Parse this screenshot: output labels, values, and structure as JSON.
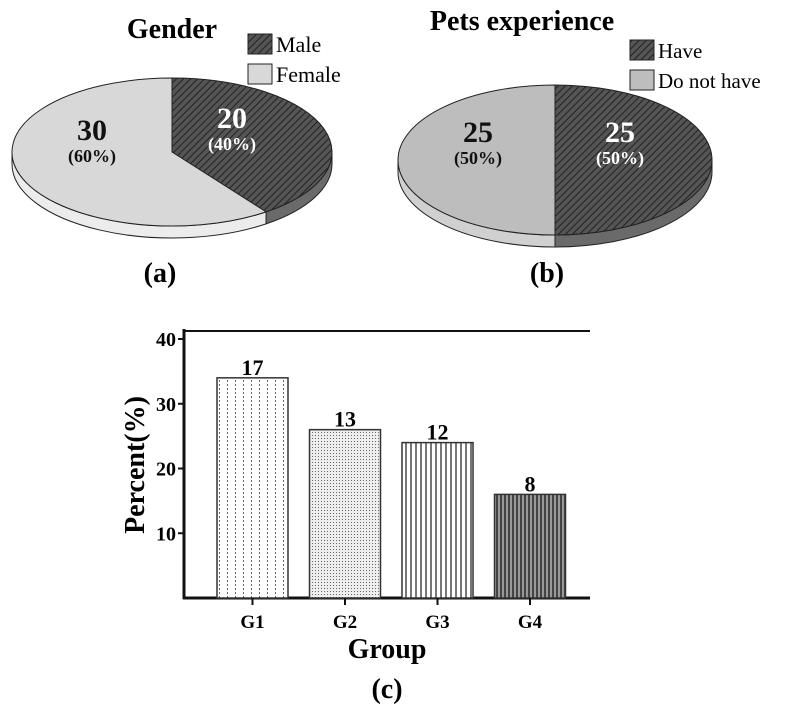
{
  "colors": {
    "dark": "#4a4a4a",
    "light": "#d8d8d8",
    "mid": "#bdbdbd",
    "stroke": "#222222"
  },
  "chart_data": [
    {
      "type": "pie",
      "panel": "(a)",
      "title": "Gender",
      "slices": [
        {
          "name": "Male",
          "value": 20,
          "label": "20",
          "pct": "(40%)",
          "fill": "hatched-dark"
        },
        {
          "name": "Female",
          "value": 30,
          "label": "30",
          "pct": "(60%)",
          "fill": "light-gray"
        }
      ],
      "legend": [
        "Male",
        "Female"
      ],
      "legend_placement": "top-right"
    },
    {
      "type": "pie",
      "panel": "(b)",
      "title": "Pets experience",
      "slices": [
        {
          "name": "Have",
          "value": 25,
          "label": "25",
          "pct": "(50%)",
          "fill": "hatched-dark"
        },
        {
          "name": "Do not have",
          "value": 25,
          "label": "25",
          "pct": "(50%)",
          "fill": "mid-gray"
        }
      ],
      "legend": [
        "Have",
        "Do not have"
      ],
      "legend_placement": "top-right"
    },
    {
      "type": "bar",
      "panel": "(c)",
      "xlabel": "Group",
      "ylabel": "Percent(%)",
      "categories": [
        "G1",
        "G2",
        "G3",
        "G4"
      ],
      "values": [
        34,
        26,
        24,
        16
      ],
      "data_labels": [
        "17",
        "13",
        "12",
        "8"
      ],
      "ylim": [
        0,
        40
      ],
      "yticks": [
        10,
        20,
        30,
        40
      ],
      "grid": false
    }
  ]
}
